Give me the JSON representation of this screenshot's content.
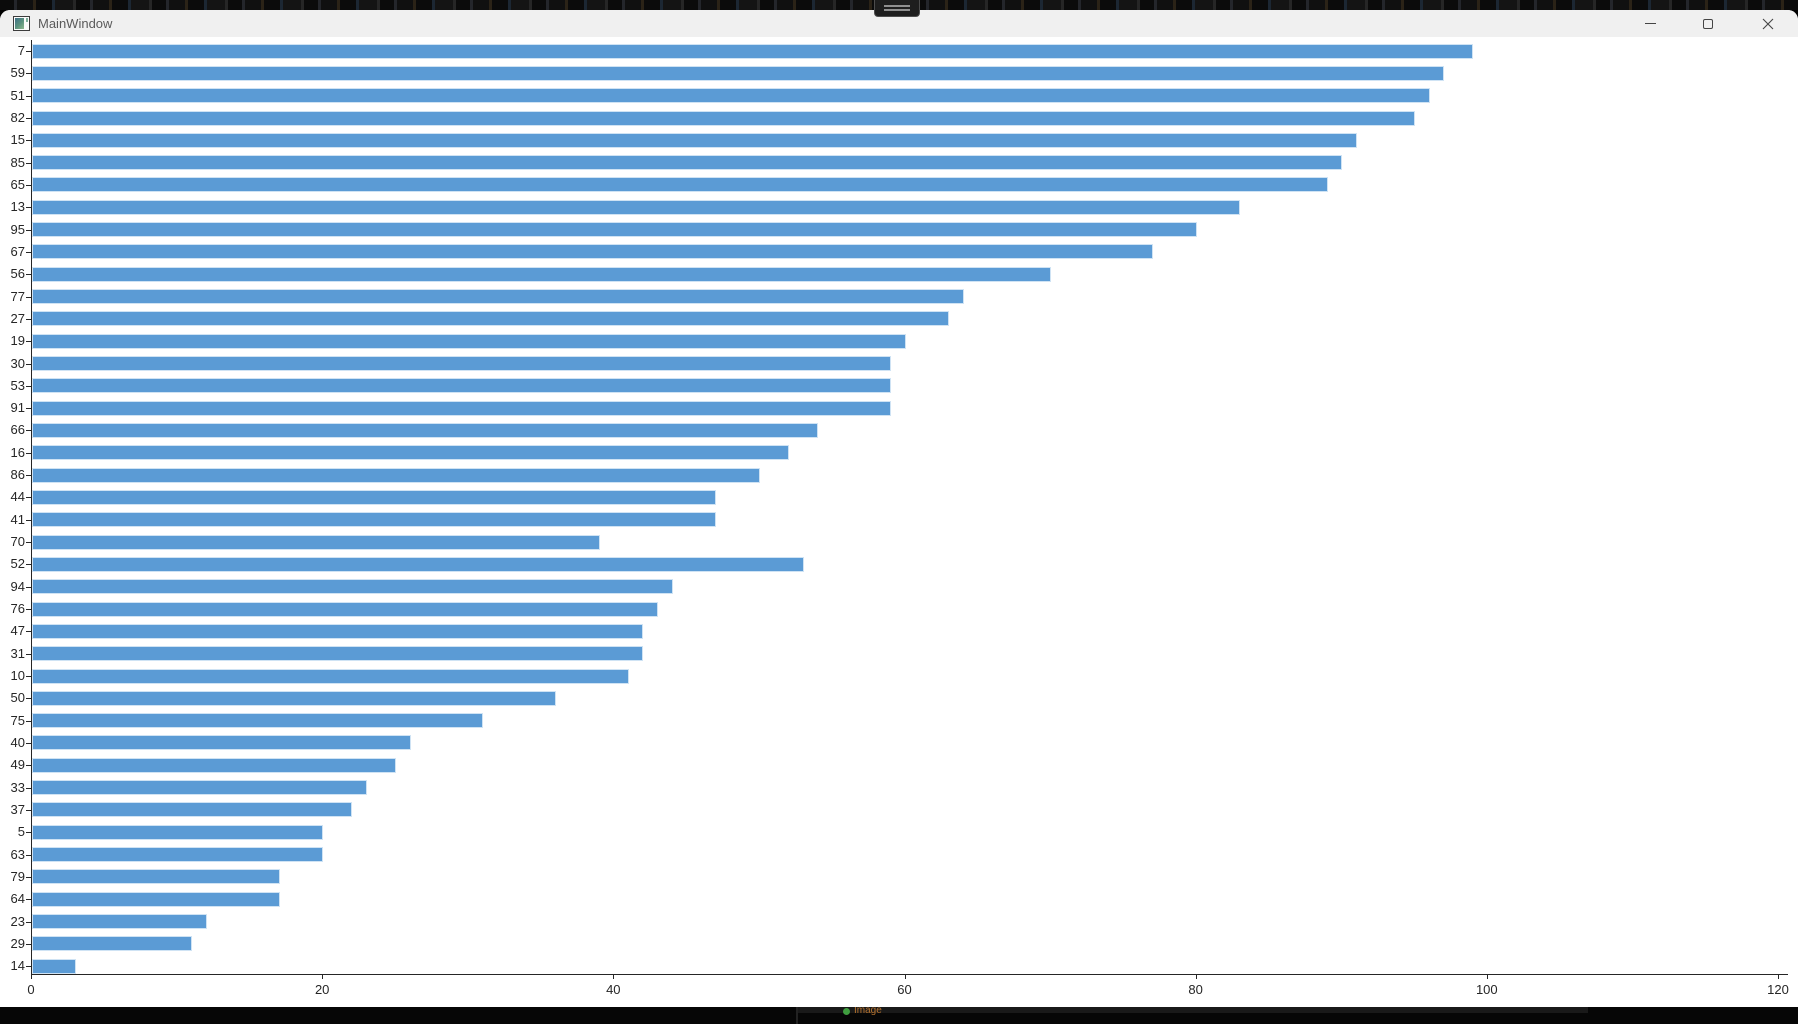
{
  "window": {
    "title": "MainWindow"
  },
  "titlebar_icons": {
    "app_icon": "qt-window-icon",
    "minimize": "–",
    "maximize": "□",
    "close": "✕"
  },
  "taskbar_fragment": {
    "text": "Image"
  },
  "chart_data": {
    "type": "bar",
    "orientation": "horizontal",
    "title": "",
    "xlabel": "",
    "ylabel": "",
    "categories": [
      "7",
      "59",
      "51",
      "82",
      "15",
      "85",
      "65",
      "13",
      "95",
      "67",
      "56",
      "77",
      "27",
      "19",
      "30",
      "53",
      "91",
      "66",
      "16",
      "86",
      "44",
      "41",
      "70",
      "52",
      "94",
      "76",
      "47",
      "31",
      "10",
      "50",
      "75",
      "40",
      "49",
      "33",
      "37",
      "5",
      "63",
      "79",
      "64",
      "23",
      "29",
      "14"
    ],
    "values": [
      99,
      97,
      96,
      95,
      91,
      90,
      89,
      83,
      80,
      77,
      70,
      64,
      63,
      60,
      59,
      59,
      59,
      54,
      52,
      50,
      47,
      47,
      39,
      53,
      44,
      43,
      42,
      42,
      41,
      36,
      31,
      26,
      25,
      23,
      22,
      20,
      20,
      17,
      17,
      12,
      11,
      3
    ],
    "xlim": [
      0,
      120
    ],
    "xticks": [
      0,
      20,
      40,
      60,
      80,
      100,
      120
    ],
    "grid": false,
    "legend": null,
    "bar_color": "#5B9BD5",
    "bar_edge_color": "#cfe3f4",
    "axis_color": "#262626",
    "tick_label_color": "#262626"
  }
}
